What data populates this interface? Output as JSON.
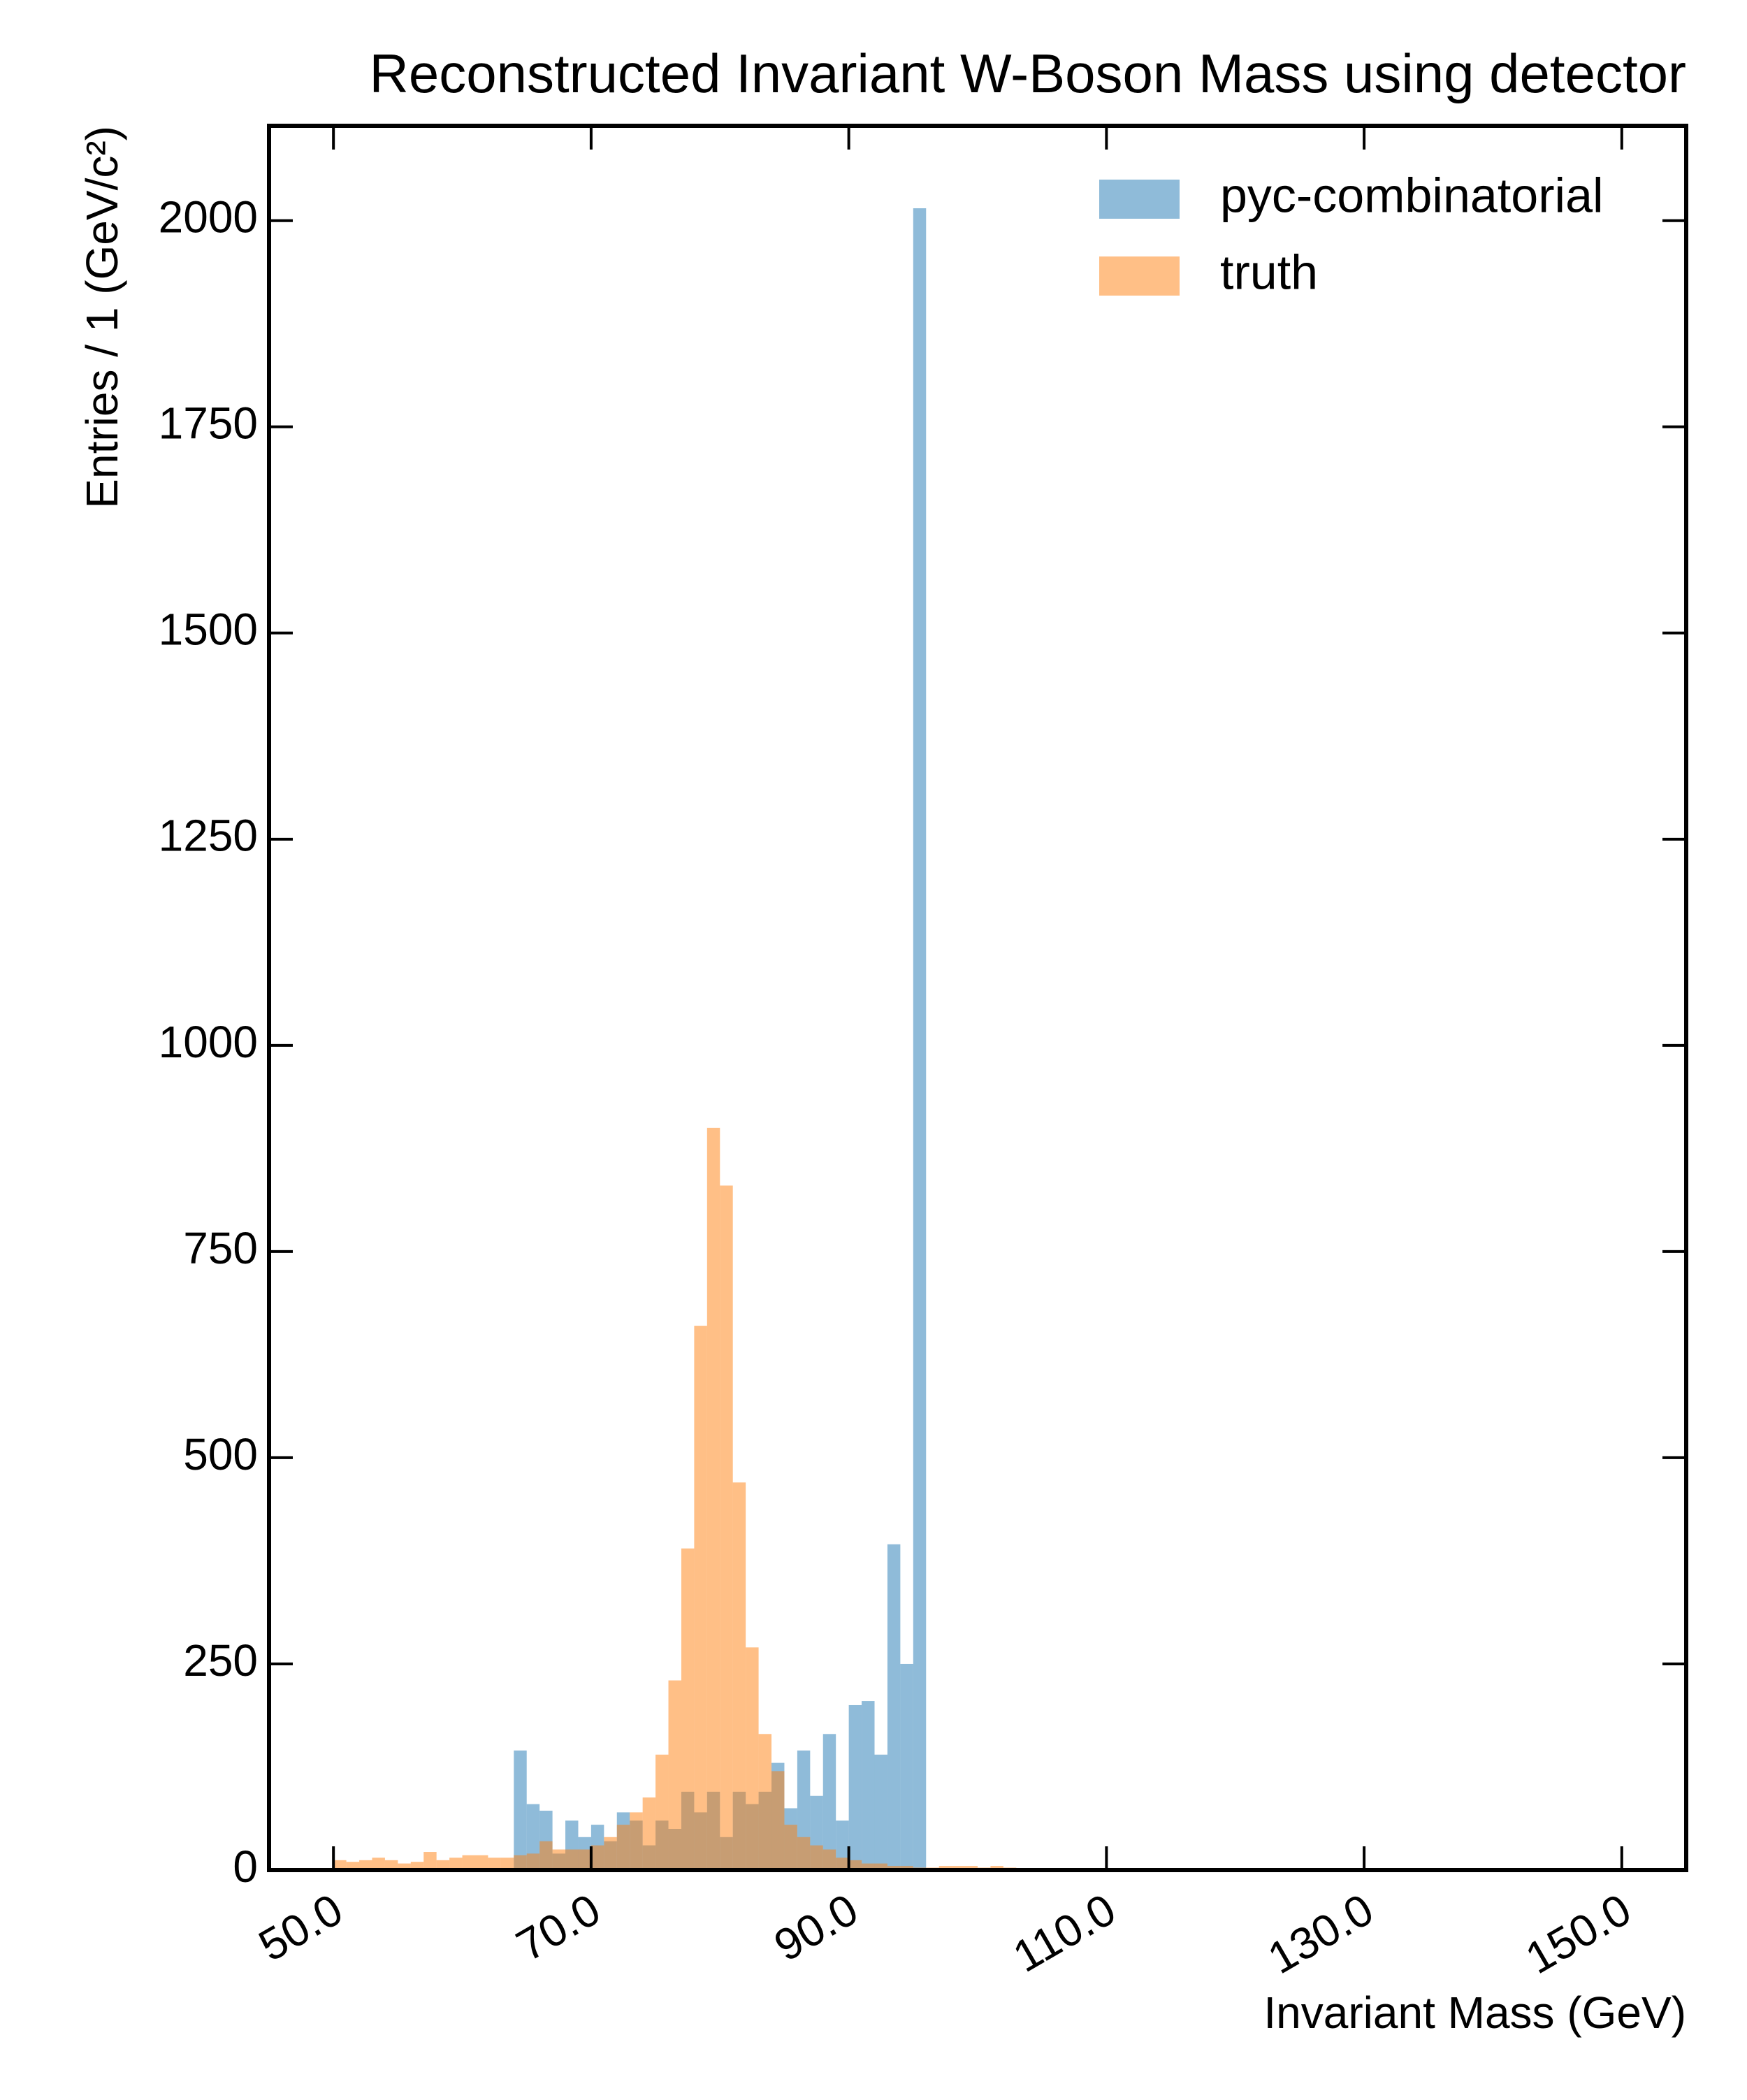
{
  "chart_data": {
    "type": "histogram",
    "title": "Reconstructed Invariant W-Boson Mass using detector",
    "x_label": "Invariant Mass (GeV)",
    "y_label": "Entries  / 1 (GeV/c²)",
    "bins": [
      50,
      51,
      52,
      53,
      54,
      55,
      56,
      57,
      58,
      59,
      60,
      61,
      62,
      63,
      64,
      65,
      66,
      67,
      68,
      69,
      70,
      71,
      72,
      73,
      74,
      75,
      76,
      77,
      78,
      79,
      80,
      81,
      82,
      83,
      84,
      85,
      86,
      87,
      88,
      89,
      90,
      91,
      92,
      93,
      94,
      95,
      96,
      97,
      98,
      99,
      100,
      101,
      102,
      103,
      104,
      105,
      106,
      107,
      108,
      109,
      110
    ],
    "series": [
      {
        "name": "pyc-combinatorial",
        "color": "#1f77b4",
        "values": [
          0,
          0,
          0,
          0,
          0,
          0,
          0,
          0,
          0,
          0,
          0,
          0,
          0,
          0,
          145,
          80,
          72,
          20,
          60,
          40,
          55,
          35,
          70,
          60,
          30,
          60,
          50,
          95,
          70,
          95,
          40,
          95,
          80,
          95,
          130,
          75,
          145,
          90,
          165,
          60,
          200,
          205,
          140,
          395,
          250,
          2015,
          0,
          0,
          0,
          0,
          0,
          0,
          0,
          0,
          0,
          0,
          0,
          0,
          0,
          0
        ]
      },
      {
        "name": "truth",
        "color": "#ff7f0e",
        "values": [
          12,
          10,
          12,
          15,
          12,
          8,
          10,
          22,
          12,
          15,
          18,
          18,
          15,
          15,
          18,
          20,
          35,
          25,
          25,
          25,
          30,
          40,
          55,
          70,
          88,
          140,
          230,
          390,
          660,
          900,
          830,
          470,
          270,
          165,
          120,
          55,
          40,
          30,
          25,
          15,
          12,
          8,
          8,
          5,
          5,
          3,
          3,
          5,
          5,
          5,
          3,
          5,
          3,
          2,
          1,
          2,
          1,
          1,
          2,
          1
        ]
      }
    ],
    "xlim": [
      45,
      155
    ],
    "ylim": [
      0,
      2115
    ],
    "xticks": [
      {
        "value": 50,
        "label": "50.0"
      },
      {
        "value": 70,
        "label": "70.0"
      },
      {
        "value": 90,
        "label": "90.0"
      },
      {
        "value": 110,
        "label": "110.0"
      },
      {
        "value": 130,
        "label": "130.0"
      },
      {
        "value": 150,
        "label": "150.0"
      }
    ],
    "yticks": [
      0,
      250,
      500,
      750,
      1000,
      1250,
      1500,
      1750,
      2000
    ],
    "opacity": 0.5,
    "legend": "upper right"
  }
}
